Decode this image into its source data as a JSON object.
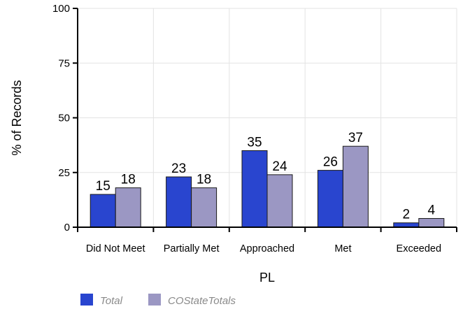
{
  "chart_data": {
    "type": "bar",
    "categories": [
      "Did Not Meet",
      "Partially Met",
      "Approached",
      "Met",
      "Exceeded"
    ],
    "series": [
      {
        "name": "Total",
        "values": [
          15,
          23,
          35,
          26,
          2
        ],
        "labels": [
          "15",
          "23",
          "35",
          "26",
          "2"
        ],
        "color": "#2945cf"
      },
      {
        "name": "COStateTotals",
        "values": [
          18,
          18,
          24,
          37,
          4
        ],
        "labels": [
          "18",
          "18",
          "24",
          "37",
          "4"
        ],
        "color": "#9b97c3"
      }
    ],
    "xlabel": "PL",
    "ylabel": "% of Records",
    "ylim": [
      0,
      100
    ],
    "yticks": [
      "0",
      "25",
      "50",
      "75",
      "100"
    ],
    "grid": true,
    "legend_position": "bottom-left",
    "colors": {
      "grid": "#e3e3e3",
      "axis": "#000000",
      "bar_outline": "#1a1a1a"
    }
  }
}
